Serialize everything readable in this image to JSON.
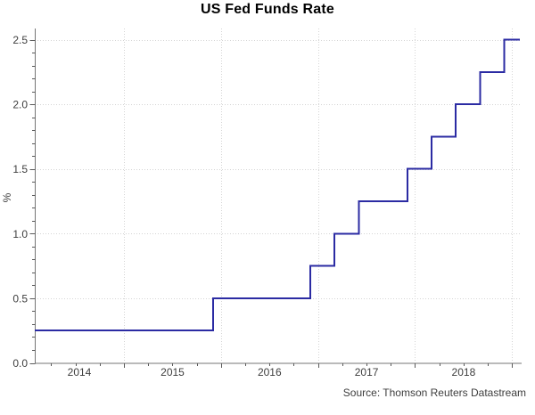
{
  "footer": {
    "source": "Source: Thomson Reuters Datastream"
  },
  "chart_data": {
    "type": "line",
    "step": "after",
    "title": "US Fed Funds Rate",
    "xlabel": "",
    "ylabel": "%",
    "xlim": [
      2014.08,
      2019.08
    ],
    "ylim": [
      0,
      2.5
    ],
    "grid": "dotted",
    "legend": "none",
    "x_major_ticks": [
      2015,
      2016,
      2017,
      2018,
      2019
    ],
    "x_minor_interval": 0.25,
    "x_labels": [
      {
        "pos": 2014.54,
        "label": "2014"
      },
      {
        "pos": 2015.5,
        "label": "2015"
      },
      {
        "pos": 2016.5,
        "label": "2016"
      },
      {
        "pos": 2017.5,
        "label": "2017"
      },
      {
        "pos": 2018.5,
        "label": "2018"
      }
    ],
    "y_ticks": [
      {
        "v": 0.0,
        "label": "0.0"
      },
      {
        "v": 0.5,
        "label": "0.5"
      },
      {
        "v": 1.0,
        "label": "1.0"
      },
      {
        "v": 1.5,
        "label": "1.5"
      },
      {
        "v": 2.0,
        "label": "2.0"
      },
      {
        "v": 2.5,
        "label": "2.5"
      }
    ],
    "y_minor_interval": 0.1,
    "series": [
      {
        "name": "US Fed Funds Rate",
        "color": "#2b2ba3",
        "points": [
          [
            2014.08,
            0.25
          ],
          [
            2015.92,
            0.5
          ],
          [
            2016.92,
            0.75
          ],
          [
            2017.17,
            1.0
          ],
          [
            2017.42,
            1.25
          ],
          [
            2017.92,
            1.5
          ],
          [
            2018.17,
            1.75
          ],
          [
            2018.42,
            2.0
          ],
          [
            2018.67,
            2.25
          ],
          [
            2018.92,
            2.5
          ],
          [
            2019.08,
            2.5
          ]
        ]
      }
    ],
    "colors": {
      "line": "#2b2ba3",
      "grid": "#d4d4d4",
      "axis": "#757575",
      "tick": "#5a5a5a",
      "text": "#3d3d3d",
      "title": "#000000",
      "background": "#ffffff"
    }
  }
}
